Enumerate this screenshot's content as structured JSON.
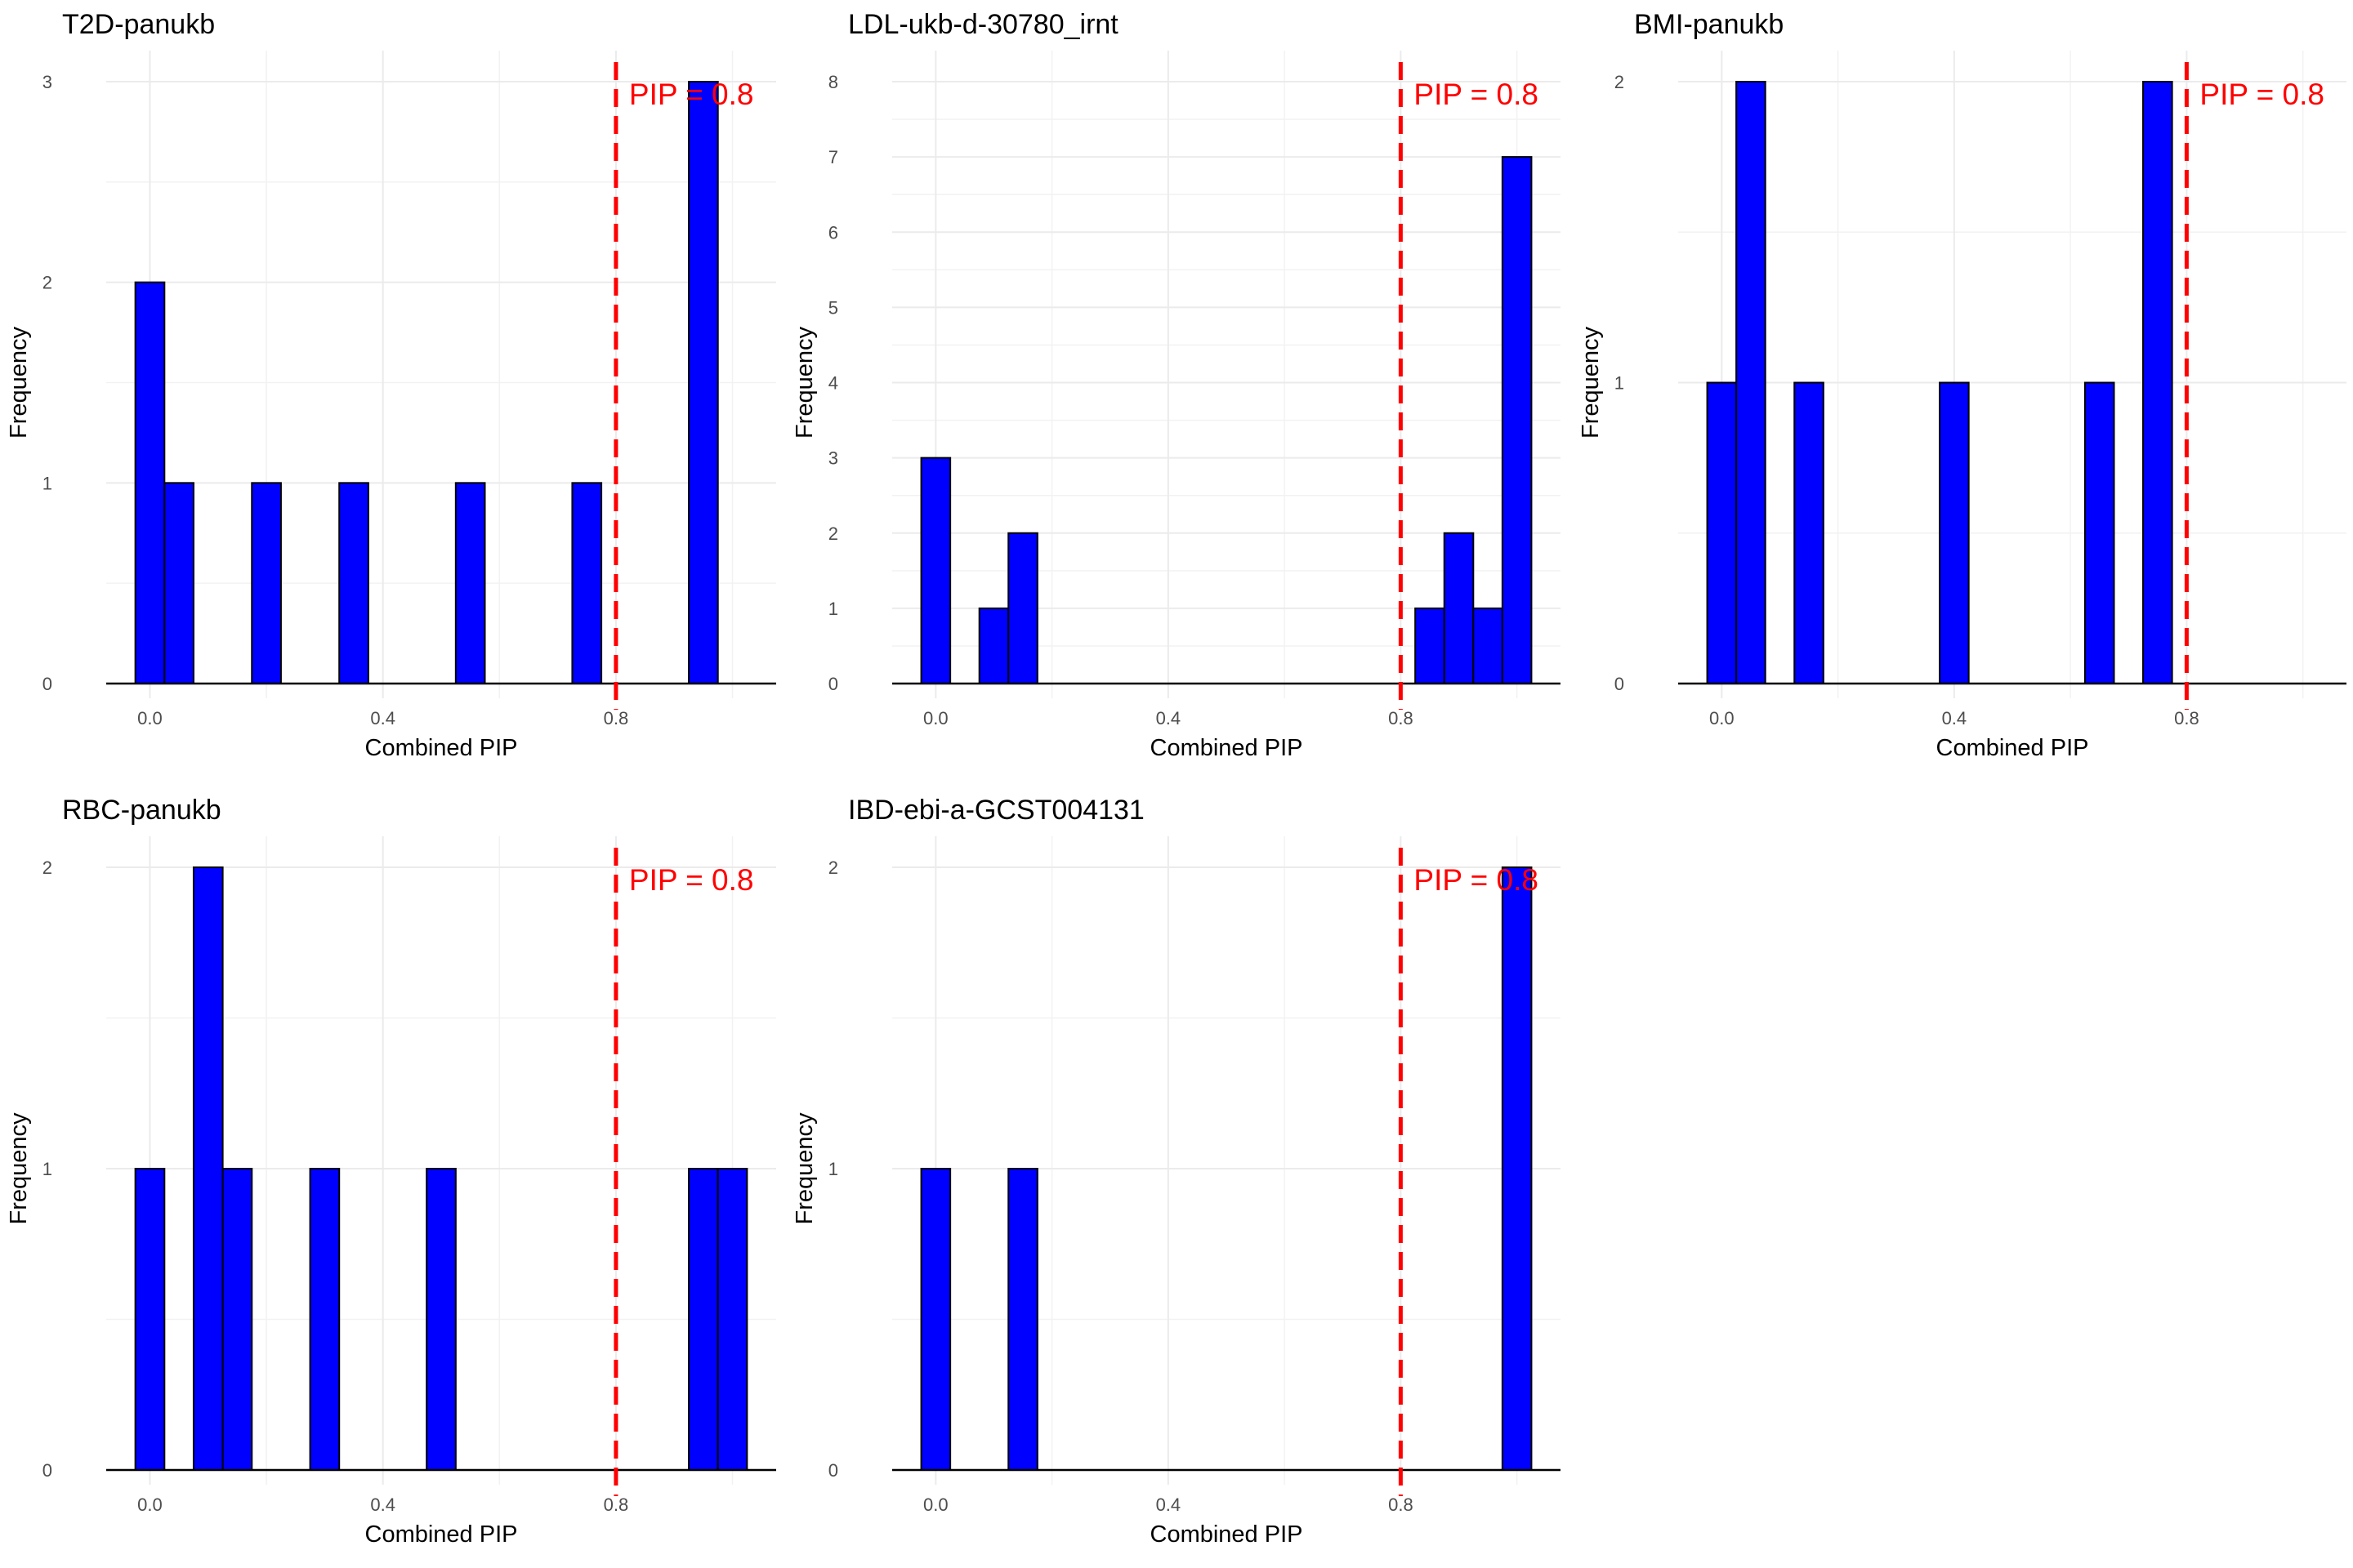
{
  "chart_data": [
    {
      "type": "bar",
      "title": "T2D-panukb",
      "xlabel": "Combined PIP",
      "ylabel": "Frequency",
      "xlim": [
        -0.075,
        1.075
      ],
      "ylim": [
        0,
        3
      ],
      "xticks": [
        0.0,
        0.4,
        0.8
      ],
      "xtick_labels": [
        "0.0",
        "0.4",
        "0.8"
      ],
      "yticks": [
        0,
        1,
        2,
        3
      ],
      "ytick_labels": [
        "0",
        "1",
        "2",
        "3"
      ],
      "bin_width": 0.05,
      "bars": [
        {
          "x": 0.0,
          "count": 2
        },
        {
          "x": 0.05,
          "count": 1
        },
        {
          "x": 0.2,
          "count": 1
        },
        {
          "x": 0.35,
          "count": 1
        },
        {
          "x": 0.55,
          "count": 1
        },
        {
          "x": 0.75,
          "count": 1
        },
        {
          "x": 0.95,
          "count": 3
        }
      ],
      "threshold": 0.8,
      "threshold_label": "PIP = 0.8",
      "bar_fill": "#0000ff",
      "line_color": "#ff0000"
    },
    {
      "type": "bar",
      "title": "LDL-ukb-d-30780_irnt",
      "xlabel": "Combined PIP",
      "ylabel": "Frequency",
      "xlim": [
        -0.075,
        1.075
      ],
      "ylim": [
        0,
        8
      ],
      "xticks": [
        0.0,
        0.4,
        0.8
      ],
      "xtick_labels": [
        "0.0",
        "0.4",
        "0.8"
      ],
      "yticks": [
        0,
        1,
        2,
        3,
        4,
        5,
        6,
        7,
        8
      ],
      "ytick_labels": [
        "0",
        "1",
        "2",
        "3",
        "4",
        "5",
        "6",
        "7",
        "8"
      ],
      "bin_width": 0.05,
      "bars": [
        {
          "x": 0.0,
          "count": 3
        },
        {
          "x": 0.1,
          "count": 1
        },
        {
          "x": 0.15,
          "count": 2
        },
        {
          "x": 0.85,
          "count": 1
        },
        {
          "x": 0.9,
          "count": 2
        },
        {
          "x": 0.95,
          "count": 1
        },
        {
          "x": 1.0,
          "count": 7
        }
      ],
      "threshold": 0.8,
      "threshold_label": "PIP = 0.8",
      "bar_fill": "#0000ff",
      "line_color": "#ff0000"
    },
    {
      "type": "bar",
      "title": "BMI-panukb",
      "xlabel": "Combined PIP",
      "ylabel": "Frequency",
      "xlim": [
        -0.075,
        1.075
      ],
      "ylim": [
        0,
        2
      ],
      "xticks": [
        0.0,
        0.4,
        0.8
      ],
      "xtick_labels": [
        "0.0",
        "0.4",
        "0.8"
      ],
      "yticks": [
        0,
        1,
        2
      ],
      "ytick_labels": [
        "0",
        "1",
        "2"
      ],
      "bin_width": 0.05,
      "bars": [
        {
          "x": 0.0,
          "count": 1
        },
        {
          "x": 0.05,
          "count": 2
        },
        {
          "x": 0.15,
          "count": 1
        },
        {
          "x": 0.4,
          "count": 1
        },
        {
          "x": 0.65,
          "count": 1
        },
        {
          "x": 0.75,
          "count": 2
        }
      ],
      "threshold": 0.8,
      "threshold_label": "PIP = 0.8",
      "bar_fill": "#0000ff",
      "line_color": "#ff0000"
    },
    {
      "type": "bar",
      "title": "RBC-panukb",
      "xlabel": "Combined PIP",
      "ylabel": "Frequency",
      "xlim": [
        -0.075,
        1.075
      ],
      "ylim": [
        0,
        2
      ],
      "xticks": [
        0.0,
        0.4,
        0.8
      ],
      "xtick_labels": [
        "0.0",
        "0.4",
        "0.8"
      ],
      "yticks": [
        0,
        1,
        2
      ],
      "ytick_labels": [
        "0",
        "1",
        "2"
      ],
      "bin_width": 0.05,
      "bars": [
        {
          "x": 0.0,
          "count": 1
        },
        {
          "x": 0.1,
          "count": 2
        },
        {
          "x": 0.15,
          "count": 1
        },
        {
          "x": 0.3,
          "count": 1
        },
        {
          "x": 0.5,
          "count": 1
        },
        {
          "x": 0.95,
          "count": 1
        },
        {
          "x": 1.0,
          "count": 1
        }
      ],
      "threshold": 0.8,
      "threshold_label": "PIP = 0.8",
      "bar_fill": "#0000ff",
      "line_color": "#ff0000"
    },
    {
      "type": "bar",
      "title": "IBD-ebi-a-GCST004131",
      "xlabel": "Combined PIP",
      "ylabel": "Frequency",
      "xlim": [
        -0.075,
        1.075
      ],
      "ylim": [
        0,
        2
      ],
      "xticks": [
        0.0,
        0.4,
        0.8
      ],
      "xtick_labels": [
        "0.0",
        "0.4",
        "0.8"
      ],
      "yticks": [
        0,
        1,
        2
      ],
      "ytick_labels": [
        "0",
        "1",
        "2"
      ],
      "bin_width": 0.05,
      "bars": [
        {
          "x": 0.0,
          "count": 1
        },
        {
          "x": 0.15,
          "count": 1
        },
        {
          "x": 1.0,
          "count": 2
        }
      ],
      "threshold": 0.8,
      "threshold_label": "PIP = 0.8",
      "bar_fill": "#0000ff",
      "line_color": "#ff0000"
    }
  ]
}
